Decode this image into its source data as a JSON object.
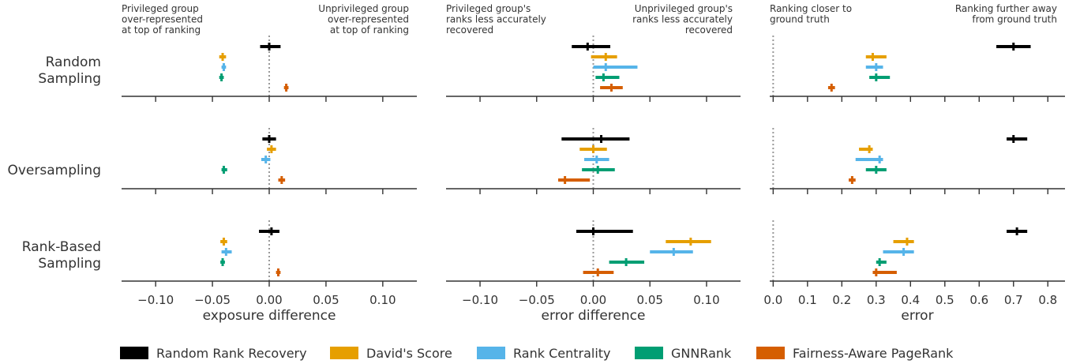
{
  "colors": {
    "random": "#000000",
    "davids": "#E69F00",
    "rankcent": "#56B4E9",
    "gnn": "#009E73",
    "fairness": "#D55E00",
    "axis": "#333333",
    "ref_line": "#999999"
  },
  "legend": [
    {
      "key": "random",
      "label": "Random Rank Recovery"
    },
    {
      "key": "davids",
      "label": "David's Score"
    },
    {
      "key": "rankcent",
      "label": "Rank Centrality"
    },
    {
      "key": "gnn",
      "label": "GNNRank"
    },
    {
      "key": "fairness",
      "label": "Fairness-Aware PageRank"
    }
  ],
  "rows": [
    {
      "label_lines": [
        "Random",
        "Sampling"
      ]
    },
    {
      "label_lines": [
        "Oversampling"
      ]
    },
    {
      "label_lines": [
        "Rank-Based",
        "Sampling"
      ]
    }
  ],
  "chart_data": [
    {
      "type": "errorbar",
      "xlabel": "exposure difference",
      "xlim": [
        -0.13,
        0.13
      ],
      "xticks": [
        -0.1,
        -0.05,
        0.0,
        0.05,
        0.1
      ],
      "xtick_labels": [
        "−0.10",
        "−0.05",
        "0.00",
        "0.05",
        "0.10"
      ],
      "ref_x": 0,
      "note_left": [
        "Privileged group",
        "over-represented",
        "at top of ranking"
      ],
      "note_right": [
        "Unprivileged group",
        "over-represented",
        "at top of ranking"
      ],
      "series": {
        "random": [
          {
            "v": 0.0,
            "lo": -0.008,
            "hi": 0.01
          },
          {
            "v": 0.0,
            "lo": -0.006,
            "hi": 0.006
          },
          {
            "v": 0.002,
            "lo": -0.009,
            "hi": 0.009
          }
        ],
        "davids": [
          {
            "v": -0.041,
            "lo": -0.044,
            "hi": -0.038
          },
          {
            "v": 0.002,
            "lo": -0.002,
            "hi": 0.006
          },
          {
            "v": -0.04,
            "lo": -0.043,
            "hi": -0.037
          }
        ],
        "rankcent": [
          {
            "v": -0.04,
            "lo": -0.042,
            "hi": -0.038
          },
          {
            "v": -0.003,
            "lo": -0.007,
            "hi": 0.001
          },
          {
            "v": -0.038,
            "lo": -0.042,
            "hi": -0.033
          }
        ],
        "gnn": [
          {
            "v": -0.042,
            "lo": -0.044,
            "hi": -0.04
          },
          {
            "v": -0.04,
            "lo": -0.042,
            "hi": -0.037
          },
          {
            "v": -0.041,
            "lo": -0.043,
            "hi": -0.039
          }
        ],
        "fairness": [
          {
            "v": 0.015,
            "lo": 0.013,
            "hi": 0.017
          },
          {
            "v": 0.011,
            "lo": 0.008,
            "hi": 0.014
          },
          {
            "v": 0.008,
            "lo": 0.006,
            "hi": 0.01
          }
        ]
      }
    },
    {
      "type": "errorbar",
      "xlabel": "error difference",
      "xlim": [
        -0.13,
        0.13
      ],
      "xticks": [
        -0.1,
        -0.05,
        0.0,
        0.05,
        0.1
      ],
      "xtick_labels": [
        "−0.10",
        "−0.05",
        "0.00",
        "0.05",
        "0.10"
      ],
      "ref_x": 0,
      "note_left": [
        "Privileged group's",
        "ranks less accurately",
        "recovered"
      ],
      "note_right": [
        "Unprivileged group's",
        "ranks less accurately",
        "recovered"
      ],
      "series": {
        "random": [
          {
            "v": -0.005,
            "lo": -0.019,
            "hi": 0.015
          },
          {
            "v": 0.007,
            "lo": -0.028,
            "hi": 0.032
          },
          {
            "v": 0.0,
            "lo": -0.015,
            "hi": 0.035
          }
        ],
        "davids": [
          {
            "v": 0.011,
            "lo": -0.002,
            "hi": 0.021
          },
          {
            "v": 0.0,
            "lo": -0.012,
            "hi": 0.012
          },
          {
            "v": 0.086,
            "lo": 0.064,
            "hi": 0.104
          }
        ],
        "rankcent": [
          {
            "v": 0.011,
            "lo": 0.0,
            "hi": 0.039
          },
          {
            "v": 0.003,
            "lo": -0.008,
            "hi": 0.014
          },
          {
            "v": 0.071,
            "lo": 0.05,
            "hi": 0.088
          }
        ],
        "gnn": [
          {
            "v": 0.009,
            "lo": 0.002,
            "hi": 0.023
          },
          {
            "v": 0.004,
            "lo": -0.01,
            "hi": 0.019
          },
          {
            "v": 0.029,
            "lo": 0.014,
            "hi": 0.045
          }
        ],
        "fairness": [
          {
            "v": 0.016,
            "lo": 0.006,
            "hi": 0.026
          },
          {
            "v": -0.025,
            "lo": -0.031,
            "hi": -0.003
          },
          {
            "v": 0.004,
            "lo": -0.009,
            "hi": 0.018
          }
        ]
      }
    },
    {
      "type": "errorbar",
      "xlabel": "error",
      "xlim": [
        -0.01,
        0.85
      ],
      "xticks": [
        0.0,
        0.1,
        0.2,
        0.3,
        0.4,
        0.5,
        0.6,
        0.7,
        0.8
      ],
      "xtick_labels": [
        "0.0",
        "0.1",
        "0.2",
        "0.3",
        "0.4",
        "0.5",
        "0.6",
        "0.7",
        "0.8"
      ],
      "ref_x": 0,
      "note_left": [
        "Ranking closer to",
        "ground truth"
      ],
      "note_right": [
        "Ranking further away",
        "from ground truth"
      ],
      "series": {
        "random": [
          {
            "v": 0.7,
            "lo": 0.65,
            "hi": 0.75
          },
          {
            "v": 0.7,
            "lo": 0.68,
            "hi": 0.74
          },
          {
            "v": 0.71,
            "lo": 0.68,
            "hi": 0.74
          }
        ],
        "davids": [
          {
            "v": 0.29,
            "lo": 0.27,
            "hi": 0.33
          },
          {
            "v": 0.28,
            "lo": 0.25,
            "hi": 0.29
          },
          {
            "v": 0.39,
            "lo": 0.35,
            "hi": 0.41
          }
        ],
        "rankcent": [
          {
            "v": 0.3,
            "lo": 0.27,
            "hi": 0.32
          },
          {
            "v": 0.31,
            "lo": 0.24,
            "hi": 0.32
          },
          {
            "v": 0.38,
            "lo": 0.32,
            "hi": 0.41
          }
        ],
        "gnn": [
          {
            "v": 0.3,
            "lo": 0.28,
            "hi": 0.34
          },
          {
            "v": 0.3,
            "lo": 0.27,
            "hi": 0.33
          },
          {
            "v": 0.31,
            "lo": 0.3,
            "hi": 0.33
          }
        ],
        "fairness": [
          {
            "v": 0.17,
            "lo": 0.16,
            "hi": 0.18
          },
          {
            "v": 0.23,
            "lo": 0.22,
            "hi": 0.24
          },
          {
            "v": 0.3,
            "lo": 0.29,
            "hi": 0.36
          }
        ]
      }
    }
  ]
}
